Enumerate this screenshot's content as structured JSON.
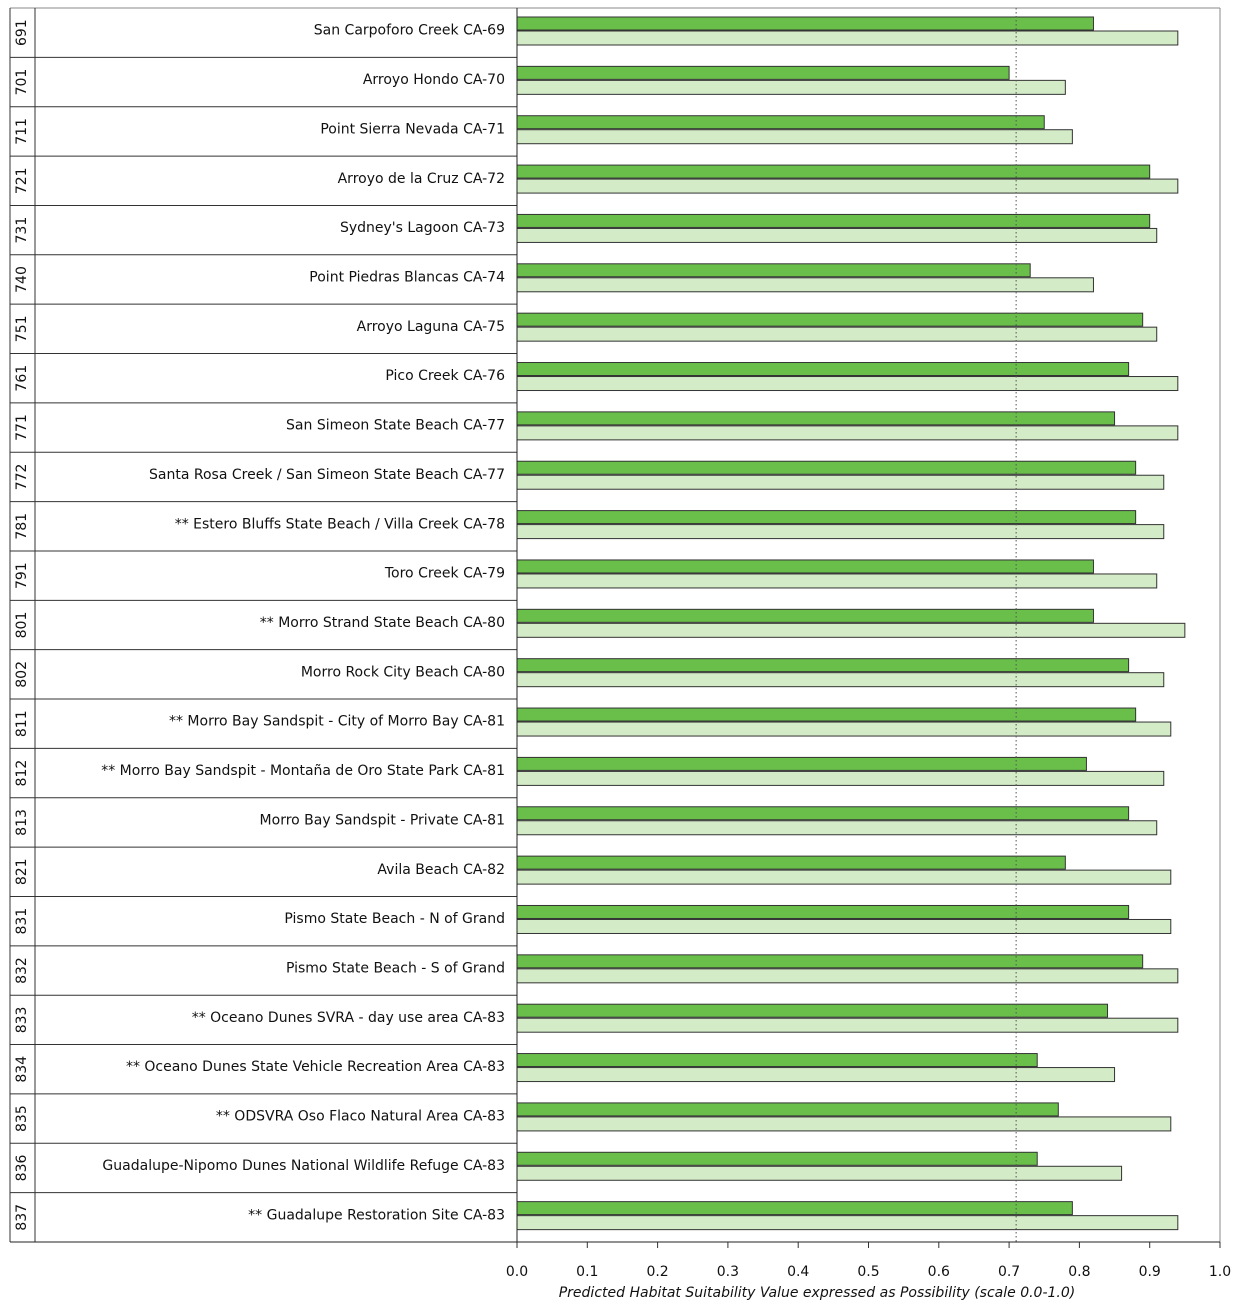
{
  "chart_data": {
    "type": "bar",
    "orientation": "horizontal",
    "codes": [
      "691",
      "701",
      "711",
      "721",
      "731",
      "740",
      "751",
      "761",
      "771",
      "772",
      "781",
      "791",
      "801",
      "802",
      "811",
      "812",
      "813",
      "821",
      "831",
      "832",
      "833",
      "834",
      "835",
      "836",
      "837"
    ],
    "categories": [
      "San Carpoforo Creek CA-69",
      "Arroyo Hondo CA-70",
      "Point Sierra Nevada CA-71",
      "Arroyo de la Cruz CA-72",
      "Sydney's Lagoon CA-73",
      "Point Piedras Blancas CA-74",
      "Arroyo Laguna CA-75",
      "Pico Creek CA-76",
      "San Simeon State Beach CA-77",
      "Santa Rosa Creek / San Simeon State Beach CA-77",
      "** Estero Bluffs State Beach / Villa Creek CA-78",
      "Toro Creek CA-79",
      "** Morro Strand State Beach CA-80",
      "Morro Rock City Beach CA-80",
      "** Morro Bay Sandspit - City of Morro Bay CA-81",
      "** Morro Bay Sandspit - Montaña de Oro State Park CA-81",
      "Morro Bay Sandspit - Private CA-81",
      "Avila Beach CA-82",
      "Pismo State Beach - N of Grand",
      "Pismo State Beach - S of Grand",
      "** Oceano Dunes SVRA - day use area CA-83",
      "** Oceano Dunes State Vehicle Recreation Area CA-83",
      "** ODSVRA Oso Flaco Natural Area CA-83",
      "Guadalupe-Nipomo Dunes National Wildlife Refuge CA-83",
      "** Guadalupe Restoration Site CA-83"
    ],
    "series": [
      {
        "color": "#6abf4b",
        "values": [
          0.82,
          0.7,
          0.75,
          0.9,
          0.9,
          0.73,
          0.89,
          0.87,
          0.85,
          0.88,
          0.88,
          0.82,
          0.82,
          0.87,
          0.88,
          0.81,
          0.87,
          0.78,
          0.87,
          0.89,
          0.84,
          0.74,
          0.77,
          0.74,
          0.79
        ]
      },
      {
        "color": "#d3ebc6",
        "values": [
          0.94,
          0.78,
          0.79,
          0.94,
          0.91,
          0.82,
          0.91,
          0.94,
          0.94,
          0.92,
          0.92,
          0.91,
          0.95,
          0.92,
          0.93,
          0.92,
          0.91,
          0.93,
          0.93,
          0.94,
          0.94,
          0.85,
          0.93,
          0.86,
          0.94
        ]
      }
    ],
    "reference_line": 0.71,
    "xlim": [
      0,
      1
    ],
    "xticks": [
      {
        "value": 0,
        "label": "0.0"
      },
      0.1,
      0.2,
      0.3,
      0.4,
      0.5,
      0.6,
      0.7,
      0.8,
      0.9,
      {
        "value": 1,
        "label": "1.0"
      }
    ],
    "x_label": "Predicted Habitat Suitability Value expressed as Possibility (scale 0.0-1.0)"
  }
}
